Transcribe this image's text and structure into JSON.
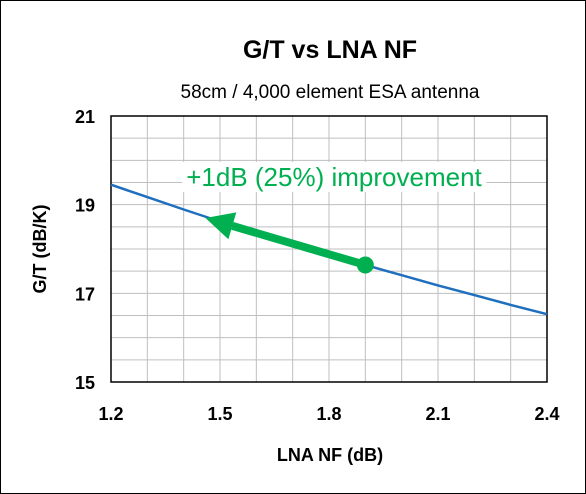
{
  "chart_data": {
    "type": "line",
    "title": "G/T vs LNA NF",
    "subtitle": "58cm / 4,000 element ESA antenna",
    "xlabel": "LNA NF (dB)",
    "ylabel": "G/T (dB/K)",
    "xlim": [
      1.2,
      2.4
    ],
    "ylim": [
      15,
      21
    ],
    "x_ticks": [
      "1.2",
      "1.5",
      "1.8",
      "2.1",
      "2.4"
    ],
    "y_ticks": [
      "15",
      "17",
      "19",
      "21"
    ],
    "grid": true,
    "series": [
      {
        "color": "#1f6fbf",
        "x": [
          1.2,
          1.3,
          1.4,
          1.5,
          1.6,
          1.7,
          1.8,
          1.9,
          2.0,
          2.1,
          2.2,
          2.3,
          2.4
        ],
        "y": [
          19.45,
          19.17,
          18.89,
          18.62,
          18.36,
          18.11,
          17.87,
          17.64,
          17.41,
          17.18,
          16.96,
          16.74,
          16.53
        ]
      }
    ],
    "annotation": {
      "text": "+1dB (25%) improvement",
      "color": "#00b050",
      "arrow_from": {
        "x": 1.9,
        "y": 17.64
      },
      "arrow_to": {
        "x": 1.46,
        "y": 18.7
      }
    }
  }
}
